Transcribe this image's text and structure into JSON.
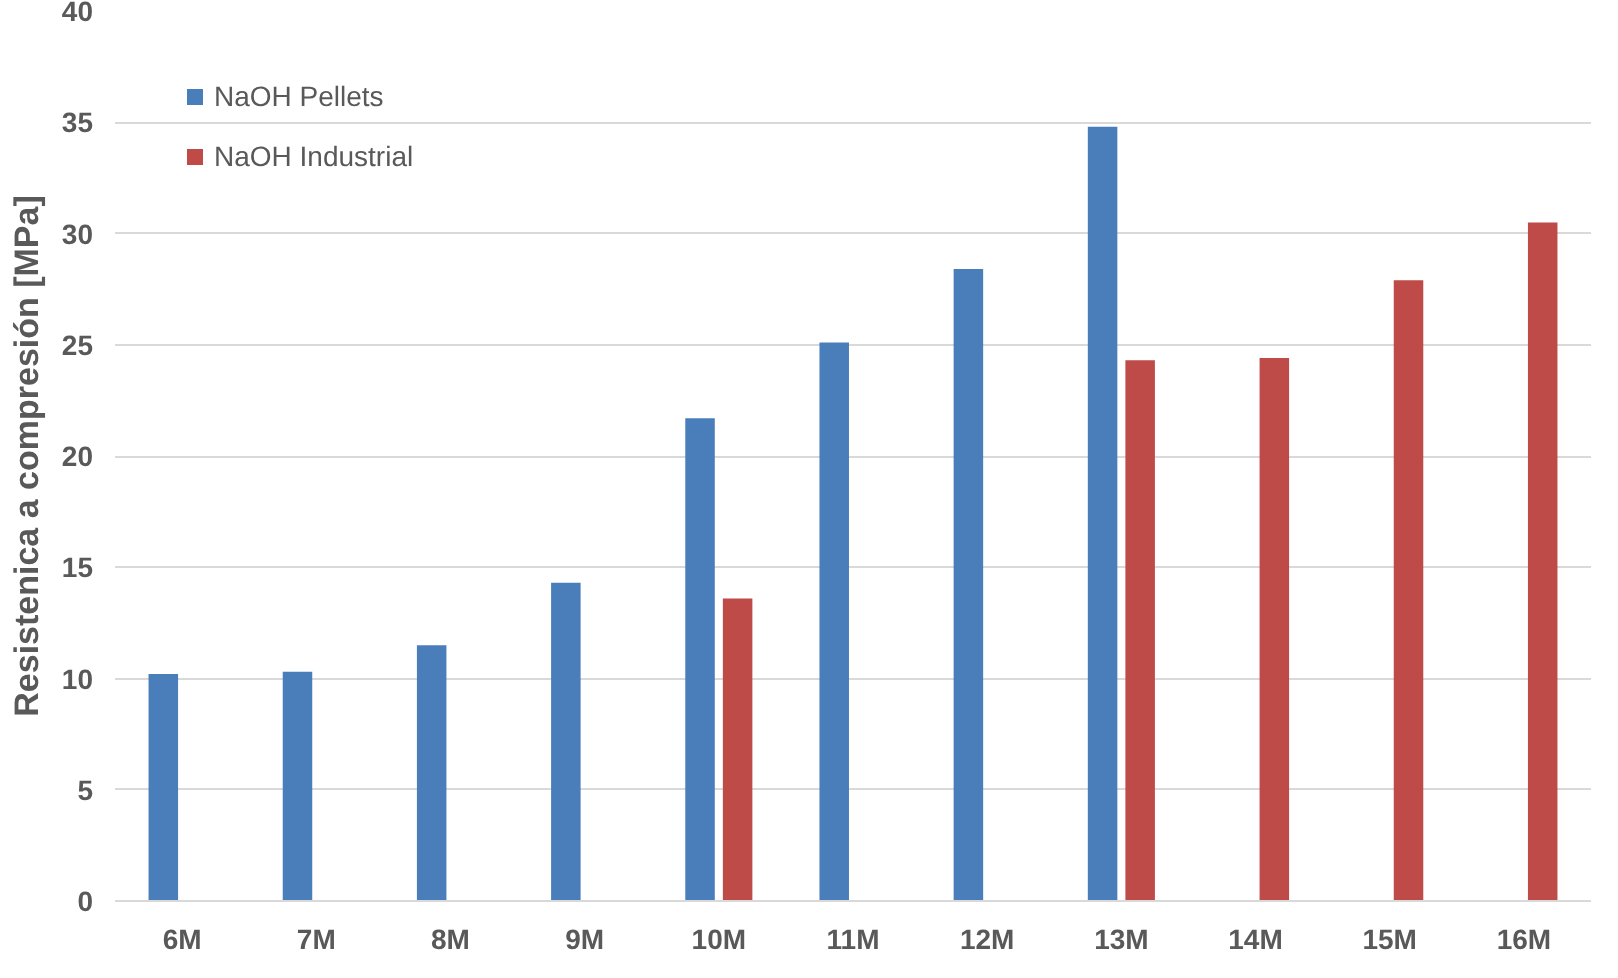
{
  "chart_data": {
    "type": "bar",
    "ylabel": "Resistenica a compresión [MPa]",
    "categories": [
      "6M",
      "7M",
      "8M",
      "9M",
      "10M",
      "11M",
      "12M",
      "13M",
      "14M",
      "15M",
      "16M"
    ],
    "series": [
      {
        "name": "NaOH Pellets",
        "color": "#4a7ebb",
        "values": [
          10.2,
          10.3,
          11.5,
          14.3,
          21.7,
          25.1,
          28.4,
          34.8,
          null,
          null,
          null
        ]
      },
      {
        "name": "NaOH Industrial",
        "color": "#be4b48",
        "values": [
          null,
          null,
          null,
          null,
          13.6,
          null,
          null,
          24.3,
          24.4,
          27.9,
          30.5
        ]
      }
    ],
    "ylim": [
      0,
      40
    ],
    "yticks": [
      0,
      5,
      10,
      15,
      20,
      25,
      30,
      35,
      40
    ],
    "grid": "y",
    "legend": "top left"
  }
}
